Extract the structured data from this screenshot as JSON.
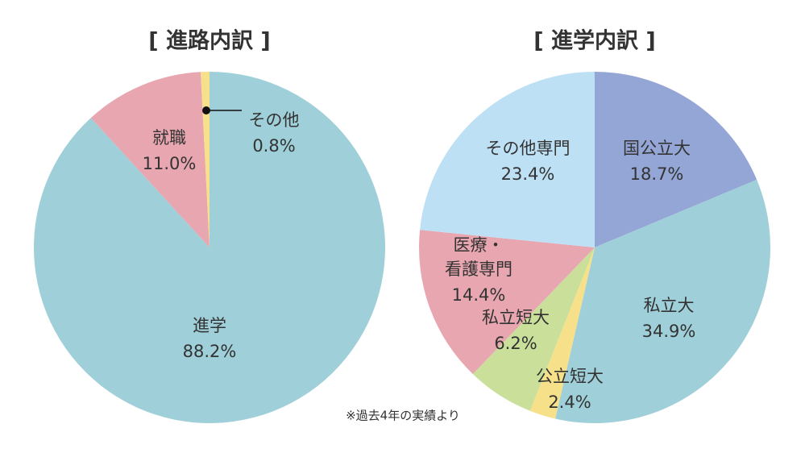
{
  "chart_data": [
    {
      "type": "pie",
      "title": "[ 進路内訳 ]",
      "categories": [
        "進学",
        "就職",
        "その他"
      ],
      "values": [
        88.2,
        11.0,
        0.8
      ],
      "value_labels": [
        "88.2%",
        "11.0%",
        "0.8%"
      ],
      "colors": [
        "#9fcfd9",
        "#e8a6b0",
        "#f7e08a"
      ]
    },
    {
      "type": "pie",
      "title": "[ 進学内訳 ]",
      "categories": [
        "国公立大",
        "私立大",
        "公立短大",
        "私立短大",
        "医療・看護専門",
        "その他専門"
      ],
      "values": [
        18.7,
        34.9,
        2.4,
        6.2,
        14.4,
        23.4
      ],
      "value_labels": [
        "18.7%",
        "34.9%",
        "2.4%",
        "6.2%",
        "14.4%",
        "23.4%"
      ],
      "colors": [
        "#94a6d6",
        "#9fcfd9",
        "#f7e08a",
        "#c9df9a",
        "#e8a6b0",
        "#bde0f5"
      ]
    }
  ],
  "footnote": "※過去4年の実績より"
}
